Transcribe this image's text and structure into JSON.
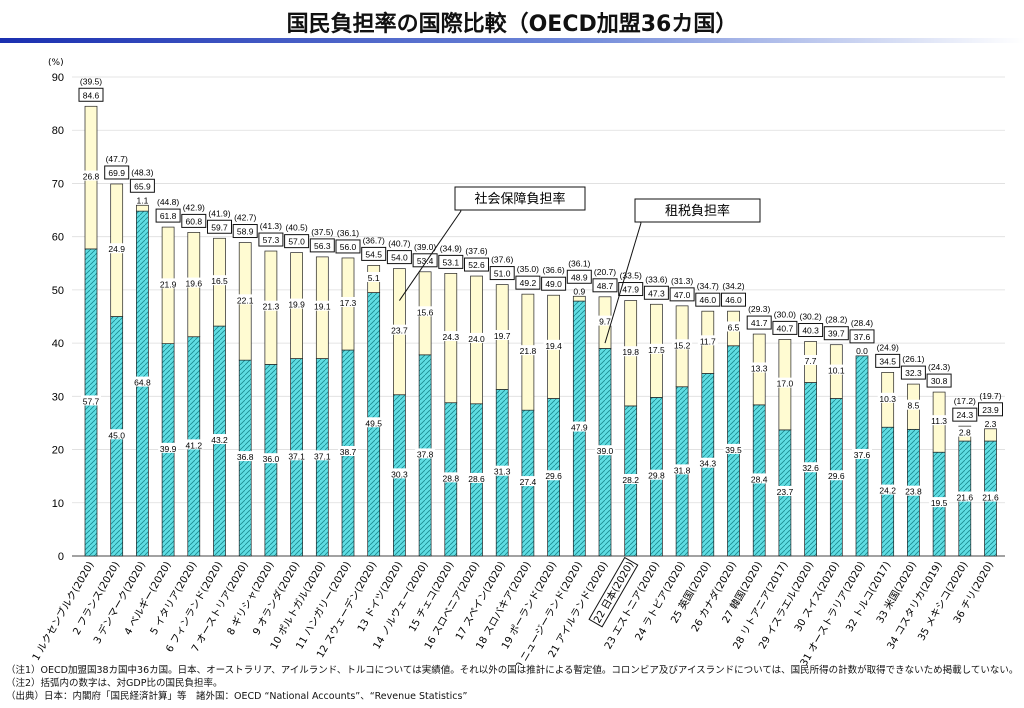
{
  "title": "国民負担率の国際比較（OECD加盟36カ国）",
  "chart_data": {
    "type": "bar",
    "stacked": true,
    "title": "国民負担率の国際比較（OECD加盟36カ国）",
    "ylabel": "(%)",
    "ylim": [
      0,
      90
    ],
    "yticks": [
      0,
      10,
      20,
      30,
      40,
      50,
      60,
      70,
      80,
      90
    ],
    "grid": true,
    "highlight_category": "22 日本(2020)",
    "colors": {
      "tax": "#5fdde3",
      "social": "#fffbd2"
    },
    "categories": [
      "1 ルクセンブルク(2020)",
      "2 フランス(2020)",
      "3 デンマーク(2020)",
      "4 ベルギー(2020)",
      "5 イタリア(2020)",
      "6 フィンランド(2020)",
      "7 オーストリア(2020)",
      "8 ギリシャ(2020)",
      "9 オランダ(2020)",
      "10 ポルトガル(2020)",
      "11 ハンガリー(2020)",
      "12 スウェーデン(2020)",
      "13 ドイツ(2020)",
      "14 ノルウェー(2020)",
      "15 チェコ(2020)",
      "16 スロベニア(2020)",
      "17 スペイン(2020)",
      "18 スロバキア(2020)",
      "19 ポーランド(2020)",
      "20 ニュージーランド(2020)",
      "21 アイルランド(2020)",
      "22 日本(2020)",
      "23 エストニア(2020)",
      "24 ラトビア(2020)",
      "25 英国(2020)",
      "26 カナダ(2020)",
      "27 韓国(2020)",
      "28 リトアニア(2017)",
      "29 イスラエル(2020)",
      "30 スイス(2020)",
      "31 オーストラリア(2020)",
      "32 トルコ(2017)",
      "33 米国(2020)",
      "34 コスタリカ(2019)",
      "35 メキシコ(2020)",
      "36 チリ(2020)"
    ],
    "series": [
      {
        "name": "租税負担率",
        "values": [
          57.7,
          45.0,
          64.8,
          39.9,
          41.2,
          43.2,
          36.8,
          36.0,
          37.1,
          37.1,
          38.7,
          49.5,
          30.3,
          37.8,
          28.8,
          28.6,
          31.3,
          27.4,
          29.6,
          47.9,
          39.0,
          28.2,
          29.8,
          31.8,
          34.3,
          39.5,
          28.4,
          23.7,
          32.6,
          29.6,
          37.6,
          24.2,
          23.8,
          19.5,
          21.6,
          21.6
        ]
      },
      {
        "name": "社会保障負担率",
        "values": [
          26.8,
          24.9,
          1.1,
          21.9,
          19.6,
          16.5,
          22.1,
          21.3,
          19.9,
          19.1,
          17.3,
          5.1,
          23.7,
          15.6,
          24.3,
          24.0,
          19.7,
          21.8,
          19.4,
          0.9,
          9.7,
          19.8,
          17.5,
          15.2,
          11.7,
          6.5,
          13.3,
          17.0,
          7.7,
          10.1,
          0.0,
          10.3,
          8.5,
          11.3,
          2.8,
          2.3
        ]
      }
    ],
    "totals": [
      "84.6",
      "69.9",
      "65.9",
      "61.8",
      "60.8",
      "59.7",
      "58.9",
      "57.3",
      "57.0",
      "56.3",
      "56.0",
      "54.5",
      "54.0",
      "53.4",
      "53.1",
      "52.6",
      "51.0",
      "49.2",
      "49.0",
      "48.9",
      "48.7",
      "47.9",
      "47.3",
      "47.0",
      "46.0",
      "46.0",
      "41.7",
      "40.7",
      "40.3",
      "39.7",
      "37.6",
      "34.5",
      "32.3",
      "30.8",
      "24.3",
      "23.9"
    ],
    "gdp_ratio": [
      "(39.5)",
      "(47.7)",
      "(48.3)",
      "(44.8)",
      "(42.9)",
      "(41.9)",
      "(42.7)",
      "(41.3)",
      "(40.5)",
      "(37.5)",
      "(36.1)",
      "(36.7)",
      "(40.7)",
      "(39.0)",
      "(34.9)",
      "(37.6)",
      "(37.6)",
      "(35.0)",
      "(36.6)",
      "(36.1)",
      "(20.7)",
      "(33.5)",
      "(33.6)",
      "(31.3)",
      "(34.7)",
      "(34.2)",
      "(29.3)",
      "(30.0)",
      "(30.2)",
      "(28.2)",
      "(28.4)",
      "(24.9)",
      "(26.1)",
      "(24.3)",
      "(17.2)",
      "(19.7)"
    ],
    "annotations": [
      "社会保障負担率",
      "租税負担率"
    ]
  },
  "notes": [
    "（注1）OECD加盟国38カ国中36カ国。日本、オーストラリア、アイルランド、トルコについては実績値。それ以外の国は推計による暫定値。コロンビア及びアイスランドについては、国民所得の計数が取得できないため掲載していない。",
    "（注2）括弧内の数字は、対GDP比の国民負担率。",
    "（出典）日本：内閣府「国民経済計算」等　諸外国：OECD “National Accounts”、“Revenue Statistics”"
  ]
}
